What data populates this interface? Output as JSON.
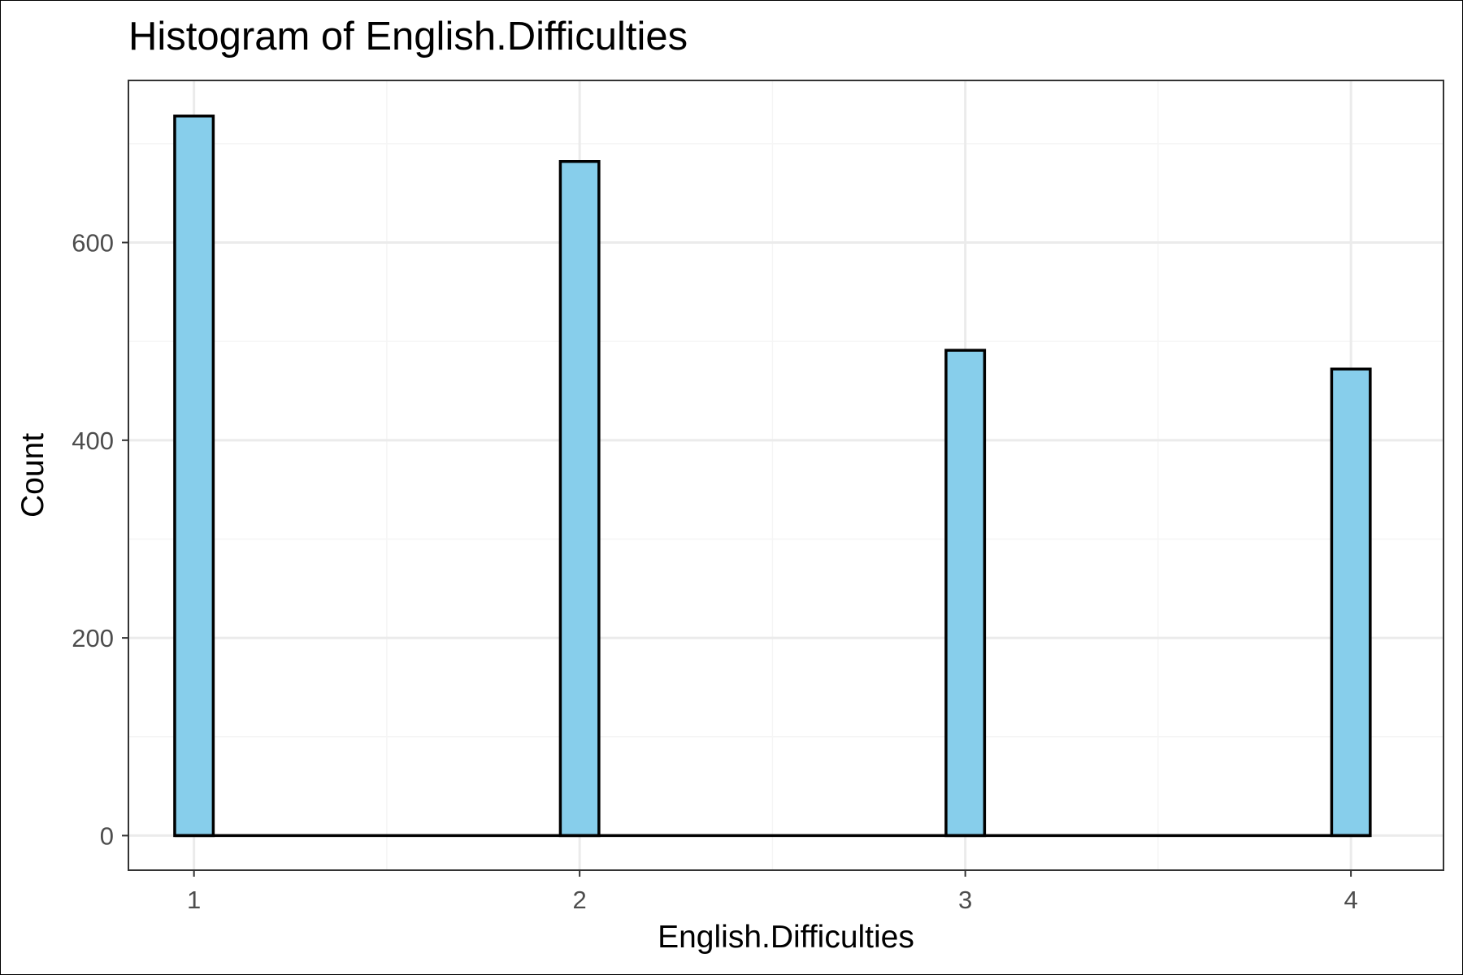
{
  "chart_data": {
    "type": "bar",
    "title": "Histogram of English.Difficulties",
    "xlabel": "English.Difficulties",
    "ylabel": "Count",
    "x": [
      1,
      2,
      3,
      4
    ],
    "values": [
      728,
      682,
      491,
      472
    ],
    "xlim": [
      0.83,
      4.24
    ],
    "ylim": [
      -35,
      764
    ],
    "bin_width": 0.1,
    "x_ticks": [
      1,
      2,
      3,
      4
    ],
    "x_minor_ticks": [
      1.5,
      2.5,
      3.5
    ],
    "y_ticks": [
      0,
      200,
      400,
      600
    ],
    "y_minor_ticks": [
      100,
      300,
      500,
      700
    ],
    "grid": true,
    "colors": {
      "bar_fill": "#87CEEB",
      "bar_outline": "#000000",
      "grid_major": "#ebebeb",
      "grid_minor": "#f5f5f5",
      "panel_border": "#333333"
    }
  }
}
